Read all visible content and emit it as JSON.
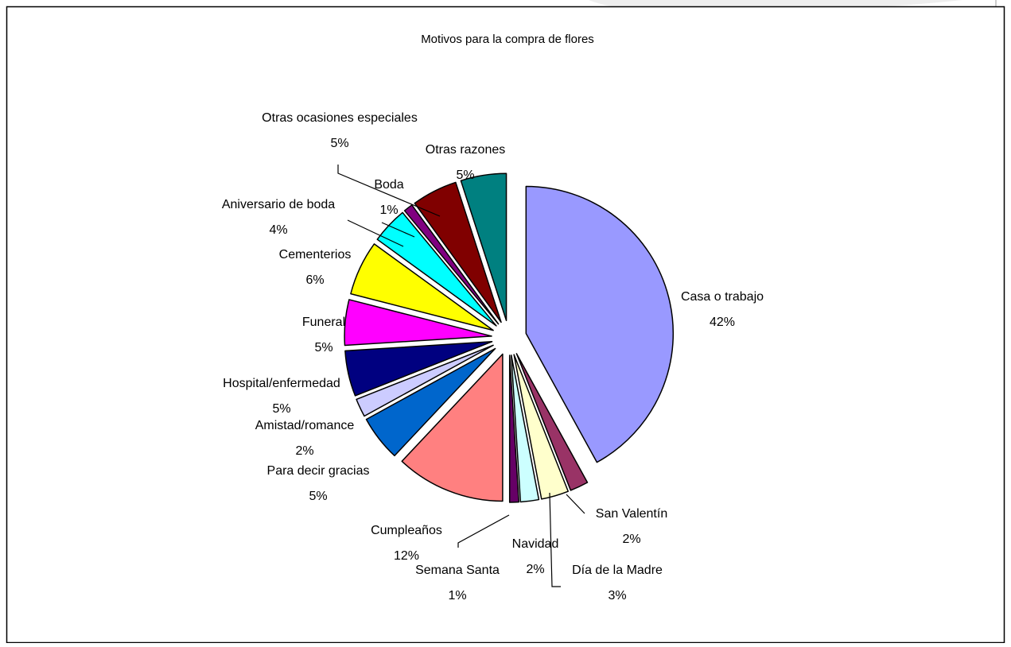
{
  "chart_data": {
    "type": "pie",
    "title": "Motivos para la compra de flores",
    "slices": [
      {
        "label": "Casa o trabajo",
        "value": 42,
        "value_label": "42%",
        "color": "#9999FF"
      },
      {
        "label": "San Valentín",
        "value": 2,
        "value_label": "2%",
        "color": "#993366"
      },
      {
        "label": "Día de la Madre",
        "value": 3,
        "value_label": "3%",
        "color": "#FFFFCC"
      },
      {
        "label": "Navidad",
        "value": 2,
        "value_label": "2%",
        "color": "#CCFFFF"
      },
      {
        "label": "Semana Santa",
        "value": 1,
        "value_label": "1%",
        "color": "#660066"
      },
      {
        "label": "Cumpleaños",
        "value": 12,
        "value_label": "12%",
        "color": "#FF8080"
      },
      {
        "label": "Para decir gracias",
        "value": 5,
        "value_label": "5%",
        "color": "#0066CC"
      },
      {
        "label": "Amistad/romance",
        "value": 2,
        "value_label": "2%",
        "color": "#CCCCFF"
      },
      {
        "label": "Hospital/enfermedad",
        "value": 5,
        "value_label": "5%",
        "color": "#000080"
      },
      {
        "label": "Funeral",
        "value": 5,
        "value_label": "5%",
        "color": "#FF00FF"
      },
      {
        "label": "Cementerios",
        "value": 6,
        "value_label": "6%",
        "color": "#FFFF00"
      },
      {
        "label": "Aniversario de boda",
        "value": 4,
        "value_label": "4%",
        "color": "#00FFFF"
      },
      {
        "label": "Boda",
        "value": 1,
        "value_label": "1%",
        "color": "#800080"
      },
      {
        "label": "Otras ocasiones especiales",
        "value": 5,
        "value_label": "5%",
        "color": "#800000"
      },
      {
        "label": "Otras razones",
        "value": 5,
        "value_label": "5%",
        "color": "#008080"
      }
    ],
    "exploded": true,
    "legend": "none"
  }
}
